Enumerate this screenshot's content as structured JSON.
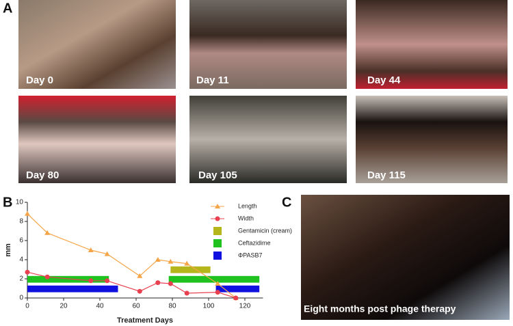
{
  "figure": {
    "panel_labels": [
      "A",
      "B",
      "C"
    ],
    "photos": [
      {
        "label": "Day 0"
      },
      {
        "label": "Day 11"
      },
      {
        "label": "Day 44"
      },
      {
        "label": "Day 80"
      },
      {
        "label": "Day 105"
      },
      {
        "label": "Day 115"
      }
    ],
    "panel_c_caption": "Eight months post phage therapy"
  },
  "chart_data": {
    "type": "line",
    "x_label": "Treatment Days",
    "y_label": "mm",
    "xlim": [
      0,
      130
    ],
    "xticks": [
      0,
      20,
      40,
      60,
      80,
      100,
      120
    ],
    "ylim": [
      0,
      10
    ],
    "yticks": [
      0,
      2,
      4,
      6,
      8,
      10
    ],
    "legend": "upper right",
    "series": [
      {
        "name": "Length",
        "color": "#f5a547",
        "marker": "triangle",
        "x": [
          0,
          11,
          35,
          44,
          62,
          72,
          79,
          88,
          105,
          115
        ],
        "values": [
          8.8,
          6.8,
          5.0,
          4.6,
          2.3,
          4.0,
          3.8,
          3.6,
          1.5,
          0
        ]
      },
      {
        "name": "Width",
        "color": "#e8404f",
        "marker": "circle",
        "x": [
          0,
          11,
          35,
          44,
          62,
          72,
          79,
          88,
          105,
          115
        ],
        "values": [
          2.7,
          2.2,
          1.8,
          1.8,
          0.7,
          1.6,
          1.5,
          0.5,
          0.6,
          0
        ]
      }
    ],
    "treatments": [
      {
        "name": "Gentamicin (cream)",
        "color": "#b5b51c",
        "y_range": [
          2.6,
          3.3
        ],
        "periods": [
          [
            79,
            101
          ]
        ]
      },
      {
        "name": "Ceftazidime",
        "color": "#1fc21f",
        "y_range": [
          1.6,
          2.3
        ],
        "periods": [
          [
            0,
            45
          ],
          [
            78,
            128
          ]
        ]
      },
      {
        "name": "ΦPASB7",
        "color": "#1010e0",
        "y_range": [
          0.6,
          1.3
        ],
        "periods": [
          [
            0,
            50
          ],
          [
            104,
            128
          ]
        ]
      }
    ]
  }
}
